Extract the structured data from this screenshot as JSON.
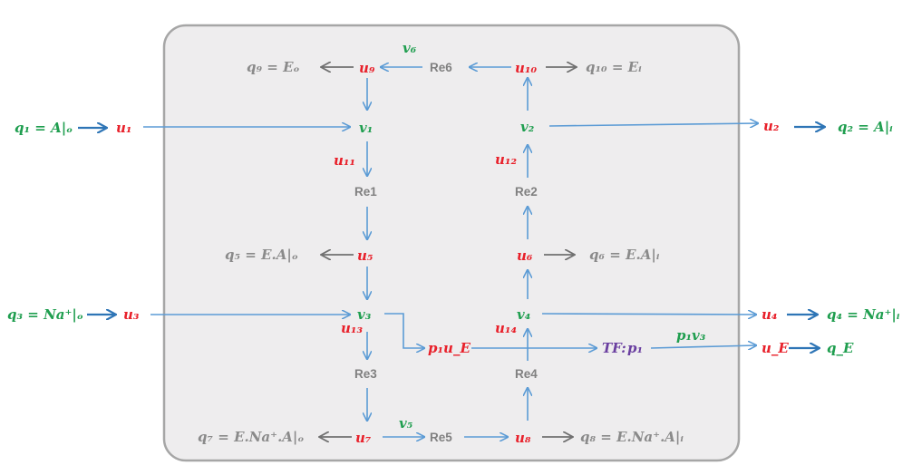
{
  "external": {
    "q1": "q₁ = A|ₒ",
    "u1": "u₁",
    "q3": "q₃ = Na⁺|ₒ",
    "u3": "u₃",
    "u2": "u₂",
    "q2": "q₂ = A|ᵢ",
    "u4": "u₄",
    "q4": "q₄ = Na⁺|ᵢ",
    "uE": "u_E",
    "qE": "q_E"
  },
  "nodes": {
    "q9": "q₉ = Eₒ",
    "u9": "u₉",
    "v6": "v₆",
    "re6": "Re6",
    "u10": "u₁₀",
    "q10": "q₁₀ = Eᵢ",
    "v1": "v₁",
    "v2": "v₂",
    "u11": "u₁₁",
    "u12": "u₁₂",
    "re1": "Re1",
    "re2": "Re2",
    "q5": "q₅ = E.A|ₒ",
    "u5": "u₅",
    "u6": "u₆",
    "q6": "q₆ = E.A|ᵢ",
    "v3": "v₃",
    "v4": "v₄",
    "u13": "u₁₃",
    "u14": "u₁₄",
    "p1uE": "p₁u_E",
    "tf": "TF:",
    "p1": "p₁",
    "p1v3": "p₁v₃",
    "re3": "Re3",
    "re4": "Re4",
    "q7": "q₇ = E.Na⁺.A|ₒ",
    "u7": "u₇",
    "v5": "v₅",
    "re5": "Re5",
    "u8": "u₈",
    "q8": "q₈ = E.Na⁺.A|ᵢ"
  },
  "colors": {
    "effort_u": "#e8202a",
    "flow_v": "#1f9e4f",
    "external_q": "#1f9e4f",
    "internal_q": "#8a8a8a",
    "reaction": "#808080",
    "transformer": "#6a3fa0",
    "arrow_blue": "#5b9bd5",
    "arrow_blue_bold": "#2e75b6",
    "arrow_gray": "#707070",
    "box_fill": "#eeedee",
    "box_stroke": "#a6a6a6"
  }
}
